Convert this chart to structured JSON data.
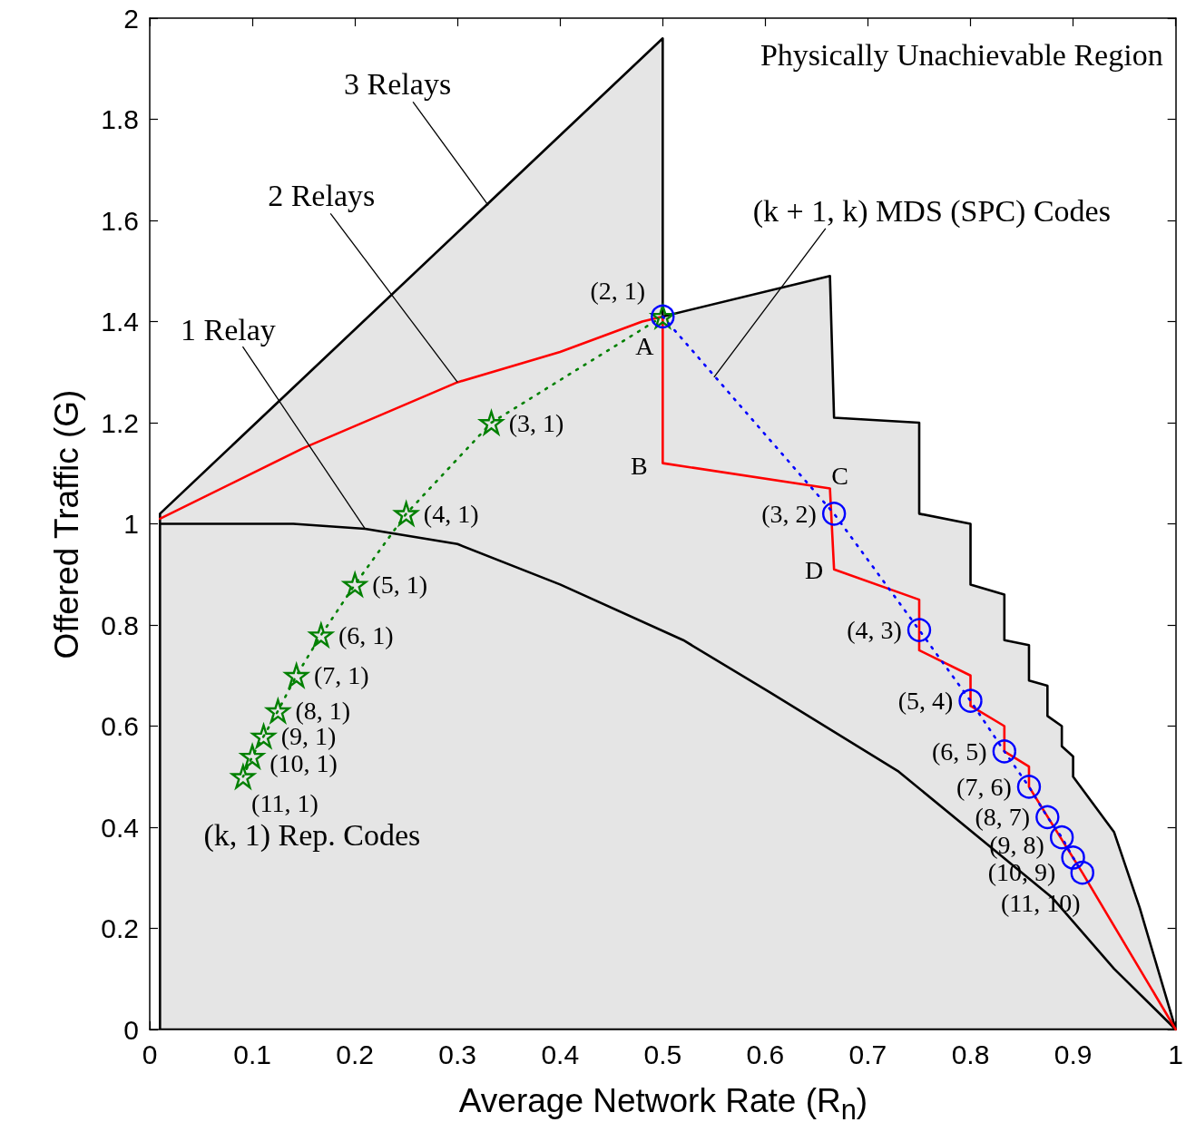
{
  "chart_data": {
    "type": "line",
    "xlabel": "Average Network Rate (R$_{n}$)",
    "ylabel": "Offered Traffic (G)",
    "xlim": [
      0,
      1
    ],
    "xticks": [
      0,
      0.1,
      0.2,
      0.3,
      0.4,
      0.5,
      0.6,
      0.7,
      0.8,
      0.9,
      1
    ],
    "ylim": [
      0,
      2
    ],
    "yticks": [
      0,
      0.2,
      0.4,
      0.6,
      0.8,
      1,
      1.2,
      1.4,
      1.6,
      1.8,
      2
    ],
    "series": [
      {
        "type": "area",
        "color": "#e5e5e5",
        "x": [
          0.01,
          0.01,
          0.5,
          0.5,
          0.663,
          0.667,
          0.75,
          0.75,
          0.8,
          0.8,
          0.833,
          0.833,
          0.857,
          0.857,
          0.875,
          0.875,
          0.889,
          0.889,
          0.9,
          0.9,
          0.94,
          0.965,
          1
        ],
        "values": [
          0,
          1.02,
          1.96,
          1.41,
          1.49,
          1.21,
          1.2,
          1.02,
          1.0,
          0.88,
          0.86,
          0.77,
          0.76,
          0.69,
          0.68,
          0.62,
          0.6,
          0.56,
          0.54,
          0.5,
          0.39,
          0.24,
          0
        ]
      },
      {
        "color": "#000000",
        "x": [
          0.01,
          0.14,
          0.21,
          0.3,
          0.4,
          0.52,
          0.61,
          0.73,
          0.82,
          0.88,
          0.94,
          1
        ],
        "values": [
          1.0,
          1.0,
          0.99,
          0.96,
          0.88,
          0.77,
          0.66,
          0.51,
          0.36,
          0.26,
          0.12,
          0
        ]
      },
      {
        "color": "#ff0000",
        "x": [
          0.01,
          0.15,
          0.3,
          0.4,
          0.48,
          0.5,
          0.5,
          0.663,
          0.667,
          0.75,
          0.75,
          0.8,
          0.8,
          0.833,
          0.833,
          0.857,
          0.857,
          0.909,
          1
        ],
        "values": [
          1.01,
          1.15,
          1.28,
          1.34,
          1.4,
          1.41,
          1.12,
          1.07,
          0.91,
          0.85,
          0.75,
          0.7,
          0.64,
          0.6,
          0.55,
          0.52,
          0.48,
          0.31,
          0
        ]
      },
      {
        "color": "#008000",
        "marker": "star",
        "line_style": "dotted",
        "x": [
          0.5,
          0.333,
          0.25,
          0.2,
          0.167,
          0.143,
          0.125,
          0.111,
          0.1,
          0.091
        ],
        "values": [
          1.41,
          1.2,
          1.02,
          0.88,
          0.78,
          0.7,
          0.63,
          0.58,
          0.54,
          0.5
        ],
        "value_labels": [
          "(2, 1)",
          "(3, 1)",
          "(4, 1)",
          "(5, 1)",
          "(6, 1)",
          "(7, 1)",
          "(8, 1)",
          "(9, 1)",
          "(10, 1)",
          "(11, 1)"
        ]
      },
      {
        "color": "#0000ff",
        "marker": "circle",
        "line_style": "dotted",
        "x": [
          0.5,
          0.667,
          0.75,
          0.8,
          0.833,
          0.857,
          0.875,
          0.889,
          0.9,
          0.909
        ],
        "values": [
          1.41,
          1.02,
          0.79,
          0.65,
          0.55,
          0.48,
          0.42,
          0.38,
          0.34,
          0.31
        ],
        "value_labels": [
          null,
          "(3, 2)",
          "(4, 3)",
          "(5, 4)",
          "(6, 5)",
          "(7, 6)",
          "(8, 7)",
          "(9, 8)",
          "(10, 9)",
          "(11, 10)"
        ]
      }
    ],
    "annotations": [
      "Physically Unachievable Region",
      {
        "text": "3 Relays",
        "x": 0.33,
        "y": 1.63
      },
      {
        "text": "2 Relays",
        "x": 0.3,
        "y": 1.28
      },
      {
        "text": "1 Relay",
        "x": 0.21,
        "y": 0.99
      },
      {
        "text": "(k + 1, k) MDS (SPC) Codes",
        "x": 0.55,
        "y": 1.29
      },
      {
        "text": "(k, 1) Rep. Codes",
        "x": 0.091,
        "y": 0.5
      },
      {
        "text": "A",
        "x": 0.5,
        "y": 1.41
      },
      {
        "text": "B",
        "x": 0.5,
        "y": 1.12
      },
      {
        "text": "C",
        "x": 0.663,
        "y": 1.07
      },
      {
        "text": "D",
        "x": 0.667,
        "y": 0.91
      }
    ]
  }
}
